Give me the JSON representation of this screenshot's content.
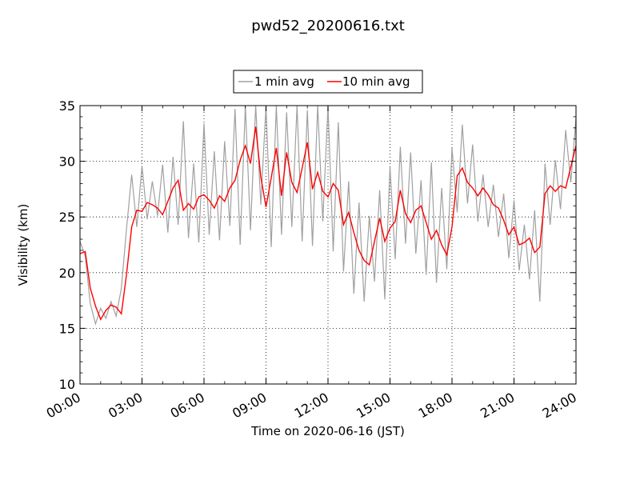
{
  "chart_data": {
    "type": "line",
    "title": "pwd52_20200616.txt",
    "xlabel": "Time on 2020-06-16 (JST)",
    "ylabel": "Visibility (km)",
    "xlim": [
      "00:00",
      "24:00"
    ],
    "ylim": [
      10,
      35
    ],
    "x_ticks": [
      "00:00",
      "03:00",
      "06:00",
      "09:00",
      "12:00",
      "15:00",
      "18:00",
      "21:00",
      "24:00"
    ],
    "y_ticks": [
      "10",
      "15",
      "20",
      "25",
      "30",
      "35"
    ],
    "grid": true,
    "legend_position": "top-center",
    "series": [
      {
        "name": "1 min avg",
        "color": "#a0a0a0",
        "x_hours": [
          0.0,
          0.25,
          0.5,
          0.75,
          1.0,
          1.25,
          1.5,
          1.75,
          2.0,
          2.25,
          2.5,
          2.75,
          3.0,
          3.25,
          3.5,
          3.75,
          4.0,
          4.25,
          4.5,
          4.75,
          5.0,
          5.25,
          5.5,
          5.75,
          6.0,
          6.25,
          6.5,
          6.75,
          7.0,
          7.25,
          7.5,
          7.75,
          8.0,
          8.25,
          8.5,
          8.75,
          9.0,
          9.25,
          9.5,
          9.75,
          10.0,
          10.25,
          10.5,
          10.75,
          11.0,
          11.25,
          11.5,
          11.75,
          12.0,
          12.25,
          12.5,
          12.75,
          13.0,
          13.25,
          13.5,
          13.75,
          14.0,
          14.25,
          14.5,
          14.75,
          15.0,
          15.25,
          15.5,
          15.75,
          16.0,
          16.25,
          16.5,
          16.75,
          17.0,
          17.25,
          17.5,
          17.75,
          18.0,
          18.25,
          18.5,
          18.75,
          19.0,
          19.25,
          19.5,
          19.75,
          20.0,
          20.25,
          20.5,
          20.75,
          21.0,
          21.25,
          21.5,
          21.75,
          22.0,
          22.25,
          22.5,
          22.75,
          23.0,
          23.25,
          23.5,
          23.75,
          24.0
        ],
        "values": [
          22.8,
          21.5,
          17.2,
          15.4,
          16.8,
          15.9,
          17.4,
          16.1,
          18.6,
          23.9,
          28.8,
          24.1,
          29.6,
          24.8,
          28.2,
          25.1,
          29.7,
          23.6,
          30.4,
          24.3,
          33.6,
          23.1,
          29.8,
          22.7,
          33.4,
          23.4,
          30.9,
          22.9,
          31.8,
          24.2,
          34.7,
          22.5,
          35.0,
          23.8,
          35.0,
          26.1,
          35.0,
          22.3,
          35.0,
          23.4,
          34.4,
          24.1,
          35.0,
          22.8,
          34.6,
          22.4,
          35.0,
          24.6,
          35.0,
          21.9,
          33.5,
          20.1,
          28.2,
          18.1,
          26.3,
          17.4,
          25.1,
          19.2,
          27.4,
          17.6,
          29.5,
          21.2,
          31.3,
          22.6,
          30.8,
          21.7,
          28.3,
          19.8,
          29.9,
          19.1,
          27.6,
          20.3,
          31.2,
          25.4,
          33.3,
          26.2,
          31.5,
          24.6,
          28.8,
          24.1,
          27.9,
          23.2,
          27.1,
          21.3,
          26.5,
          20.2,
          24.3,
          19.4,
          25.6,
          17.4,
          29.8,
          24.3,
          30.1,
          25.7,
          32.8,
          28.1,
          33.9
        ]
      },
      {
        "name": "10 min avg",
        "color": "#ff0000",
        "x_hours": [
          0.0,
          0.25,
          0.5,
          0.75,
          1.0,
          1.25,
          1.5,
          1.75,
          2.0,
          2.25,
          2.5,
          2.75,
          3.0,
          3.25,
          3.5,
          3.75,
          4.0,
          4.25,
          4.5,
          4.75,
          5.0,
          5.25,
          5.5,
          5.75,
          6.0,
          6.25,
          6.5,
          6.75,
          7.0,
          7.25,
          7.5,
          7.75,
          8.0,
          8.25,
          8.5,
          8.75,
          9.0,
          9.25,
          9.5,
          9.75,
          10.0,
          10.25,
          10.5,
          10.75,
          11.0,
          11.25,
          11.5,
          11.75,
          12.0,
          12.25,
          12.5,
          12.75,
          13.0,
          13.25,
          13.5,
          13.75,
          14.0,
          14.25,
          14.5,
          14.75,
          15.0,
          15.25,
          15.5,
          15.75,
          16.0,
          16.25,
          16.5,
          16.75,
          17.0,
          17.25,
          17.5,
          17.75,
          18.0,
          18.25,
          18.5,
          18.75,
          19.0,
          19.25,
          19.5,
          19.75,
          20.0,
          20.25,
          20.5,
          20.75,
          21.0,
          21.25,
          21.5,
          21.75,
          22.0,
          22.25,
          22.5,
          22.75,
          23.0,
          23.25,
          23.5,
          23.75,
          24.0
        ],
        "values": [
          21.7,
          21.9,
          18.6,
          17.0,
          15.8,
          16.6,
          17.1,
          16.9,
          16.3,
          19.8,
          24.1,
          25.6,
          25.5,
          26.3,
          26.1,
          25.8,
          25.2,
          26.4,
          27.6,
          28.3,
          25.6,
          26.2,
          25.7,
          26.8,
          27.0,
          26.5,
          25.8,
          26.9,
          26.4,
          27.6,
          28.3,
          30.1,
          31.4,
          29.8,
          33.1,
          28.6,
          25.9,
          28.5,
          31.2,
          26.9,
          30.8,
          28.1,
          27.2,
          29.4,
          31.7,
          27.5,
          29.0,
          27.3,
          26.8,
          28.0,
          27.4,
          24.3,
          25.4,
          23.6,
          22.0,
          21.1,
          20.7,
          22.8,
          24.9,
          22.8,
          24.0,
          24.6,
          27.4,
          25.3,
          24.5,
          25.6,
          26.0,
          24.5,
          23.0,
          23.8,
          22.5,
          21.6,
          24.1,
          28.7,
          29.4,
          28.1,
          27.6,
          26.9,
          27.6,
          27.0,
          26.1,
          25.8,
          24.7,
          23.4,
          24.1,
          22.5,
          22.7,
          23.1,
          21.8,
          22.3,
          27.1,
          27.8,
          27.3,
          27.8,
          27.6,
          29.5,
          31.4
        ]
      }
    ]
  }
}
